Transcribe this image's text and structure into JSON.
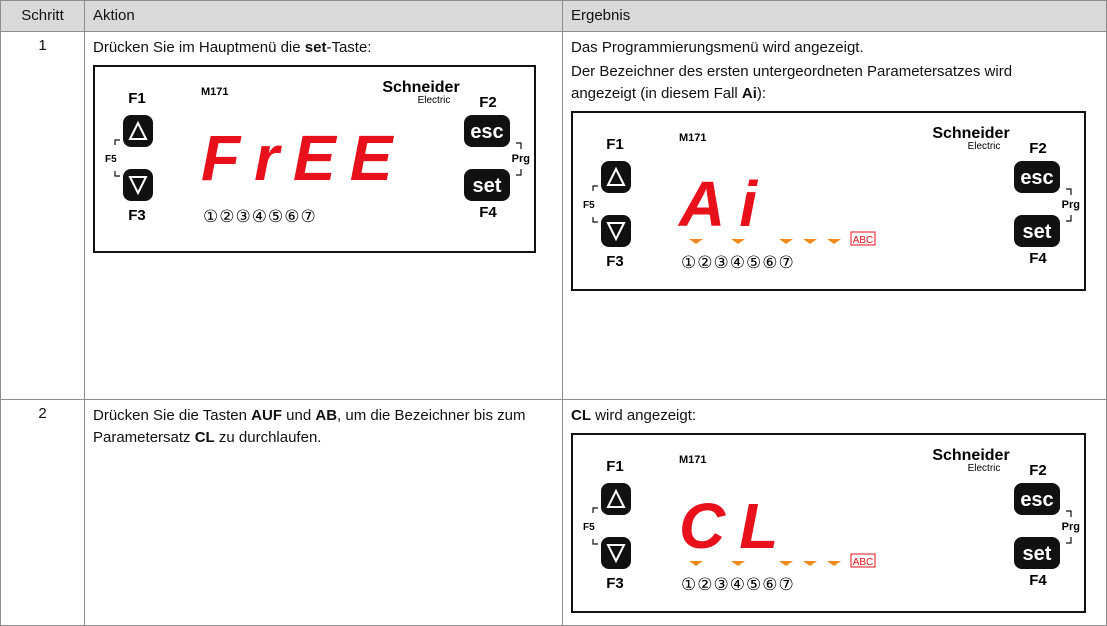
{
  "table": {
    "header": [
      "Schritt",
      "Aktion",
      "Ergebnis"
    ],
    "rows": [
      {
        "step": "1",
        "action": [
          [
            {
              "text": "Drücken Sie im Hauptmenü die "
            },
            {
              "text": "set",
              "bold": true
            },
            {
              "text": "-Taste:"
            }
          ]
        ],
        "action_panel": {
          "model": "M171",
          "brand": "Schneider",
          "brand_sub": "Electric",
          "f1": "F1",
          "f2": "F2",
          "f3": "F3",
          "f4": "F4",
          "f5": "F5",
          "esc": "esc",
          "set": "set",
          "prg": "Prg",
          "display": "FrEE",
          "leds": "①②③④⑤⑥⑦"
        },
        "result": [
          [
            {
              "text": "Das Programmierungsmenü wird angezeigt."
            }
          ],
          [
            {
              "text": "Der Bezeichner des ersten untergeordneten Parametersatzes wird angezeigt (in diesem Fall "
            },
            {
              "text": "Ai",
              "bold": true
            },
            {
              "text": "):"
            }
          ]
        ],
        "result_panel": {
          "model": "M171",
          "brand": "Schneider",
          "brand_sub": "Electric",
          "f1": "F1",
          "f2": "F2",
          "f3": "F3",
          "f4": "F4",
          "f5": "F5",
          "esc": "esc",
          "set": "set",
          "prg": "Prg",
          "display": "Ai",
          "leds": "①②③④⑤⑥⑦",
          "badge": "ABC"
        }
      },
      {
        "step": "2",
        "action": [
          [
            {
              "text": "Drücken Sie die Tasten "
            },
            {
              "text": "AUF",
              "bold": true
            },
            {
              "text": " und "
            },
            {
              "text": "AB",
              "bold": true
            },
            {
              "text": ", um die Bezeichner bis zum Parametersatz "
            },
            {
              "text": "CL",
              "bold": true
            },
            {
              "text": " zu durchlaufen."
            }
          ]
        ],
        "result": [
          [
            {
              "text": "CL",
              "bold": true
            },
            {
              "text": " wird angezeigt:"
            }
          ]
        ],
        "result_panel": {
          "model": "M171",
          "brand": "Schneider",
          "brand_sub": "Electric",
          "f1": "F1",
          "f2": "F2",
          "f3": "F3",
          "f4": "F4",
          "f5": "F5",
          "esc": "esc",
          "set": "set",
          "prg": "Prg",
          "display": "CL",
          "leds": "①②③④⑤⑥⑦",
          "badge": "ABC"
        }
      }
    ]
  }
}
